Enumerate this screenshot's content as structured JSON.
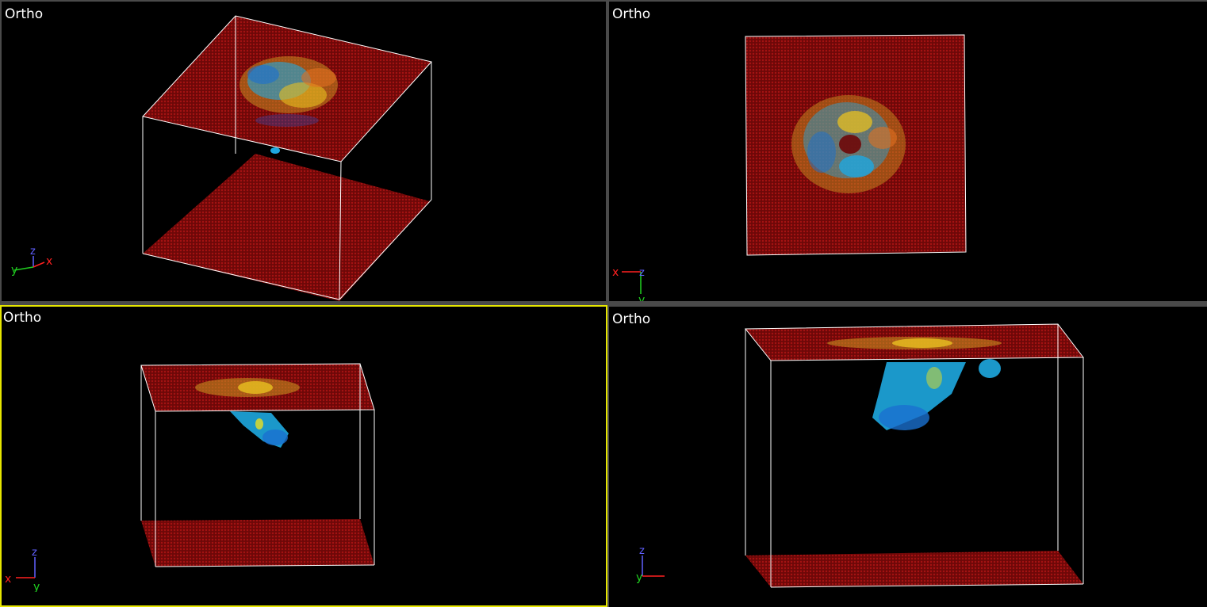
{
  "viewports": [
    {
      "id": "top-left",
      "label": "Ortho",
      "active": false,
      "axes": [
        "y",
        "z",
        "x"
      ]
    },
    {
      "id": "top-right",
      "label": "Ortho",
      "active": false,
      "axes": [
        "x",
        "z",
        "y"
      ]
    },
    {
      "id": "bottom-left",
      "label": "Ortho",
      "active": true,
      "axes": [
        "x",
        "z",
        "y"
      ]
    },
    {
      "id": "bottom-right",
      "label": "Ortho",
      "active": false,
      "axes": [
        "y",
        "z",
        "x"
      ]
    }
  ],
  "colors": {
    "background": "#000000",
    "divider": "#4a4a4a",
    "active_border": "#e6e600",
    "plane": "#7a0a0a",
    "plane_dot": "#a01010",
    "box_edge": "#ffffff",
    "axis_x": "#ff2020",
    "axis_y": "#20d020",
    "axis_z": "#6060ff",
    "data_cyan": "#1ea8e0",
    "data_blue": "#1a70d0",
    "data_yellow": "#e8c020",
    "data_orange": "#e07020"
  }
}
